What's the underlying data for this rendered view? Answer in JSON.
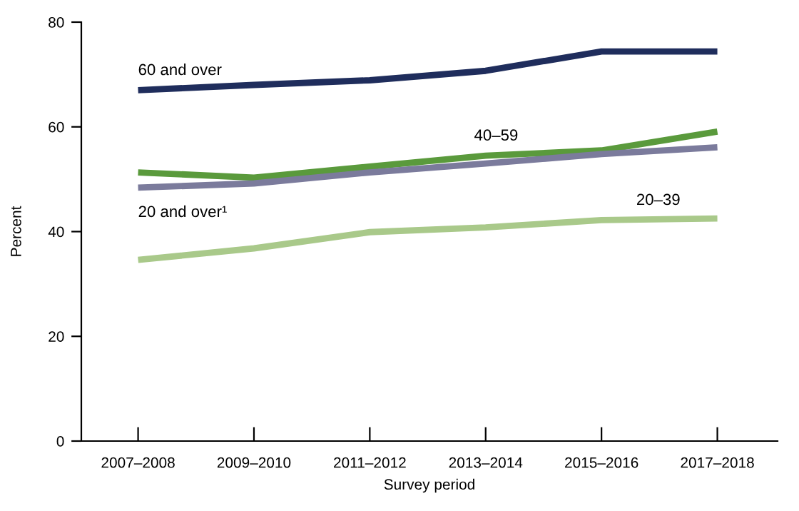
{
  "chart_data": {
    "type": "line",
    "xlabel": "Survey period",
    "ylabel": "Percent",
    "categories": [
      "2007–2008",
      "2009–2010",
      "2011–2012",
      "2013–2014",
      "2015–2016",
      "2017–2018"
    ],
    "series": [
      {
        "name": "60 and over",
        "color": "#1f2d5c",
        "values": [
          67.0,
          68.0,
          68.9,
          70.7,
          74.4,
          74.4
        ]
      },
      {
        "name": "40–59",
        "color": "#5a9a3c",
        "values": [
          51.3,
          50.3,
          52.4,
          54.5,
          55.5,
          59.1
        ]
      },
      {
        "name": "20 and over¹",
        "color": "#7b7b9c",
        "values": [
          48.4,
          49.2,
          51.3,
          53.0,
          54.8,
          56.1
        ]
      },
      {
        "name": "20–39",
        "color": "#a9c98a",
        "values": [
          34.6,
          36.8,
          39.9,
          40.8,
          42.2,
          42.5
        ]
      }
    ],
    "ylim": [
      0,
      80
    ],
    "yticks": [
      0,
      20,
      40,
      60,
      80
    ],
    "grid": false,
    "legend": false,
    "marker": "none",
    "line_style": "solid"
  }
}
